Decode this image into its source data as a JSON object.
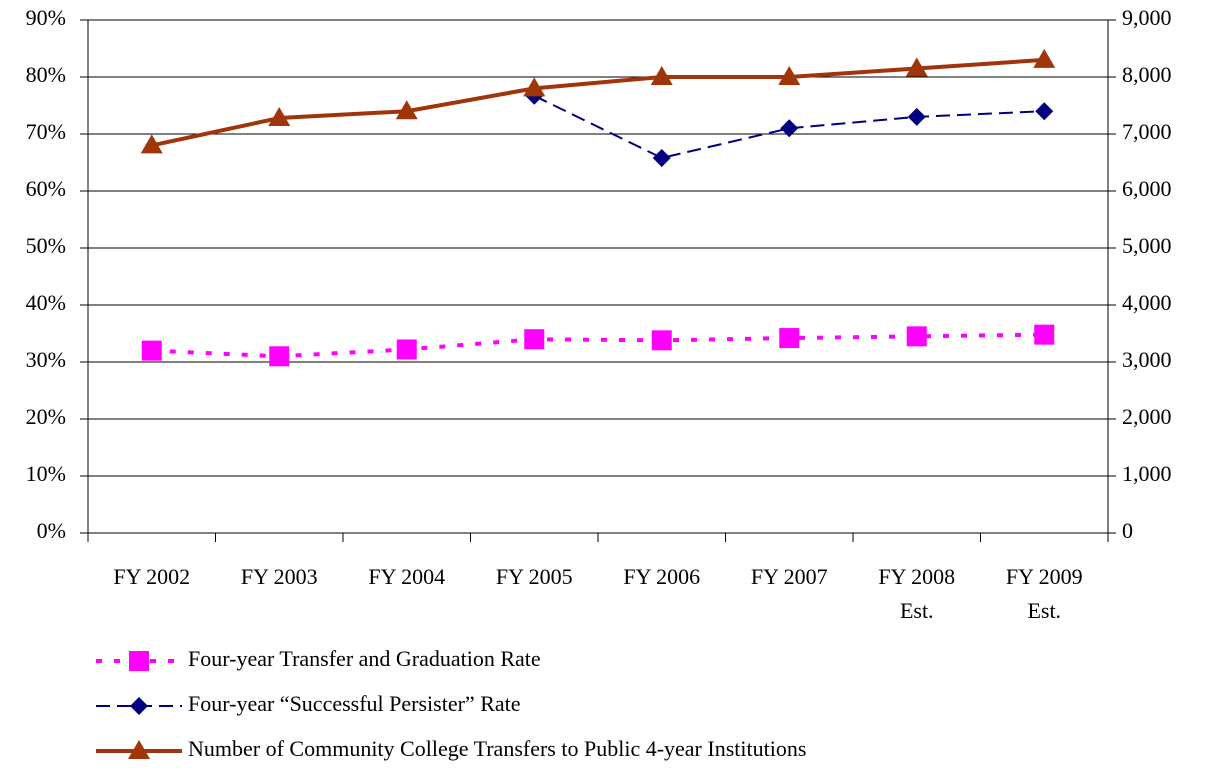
{
  "chart_data": {
    "type": "line",
    "categories": [
      "FY 2002",
      "FY 2003",
      "FY 2004",
      "FY 2005",
      "FY 2006",
      "FY 2007",
      "FY 2008 Est.",
      "FY 2009 Est."
    ],
    "series": [
      {
        "name": "Four-year Transfer and Graduation Rate",
        "color": "#ff00ff",
        "dash": "dotted",
        "marker": "square",
        "values": [
          32,
          31,
          32.2,
          34,
          33.8,
          34.2,
          34.5,
          34.8
        ]
      },
      {
        "name": "Four-year “Successful Persister” Rate",
        "color": "#000080",
        "dash": "dashed",
        "marker": "diamond",
        "values": [
          null,
          null,
          null,
          76.7,
          65.8,
          71,
          73,
          74
        ]
      },
      {
        "name": "Number of Community College Transfers to Public 4-year Institutions",
        "color": "#a0350a",
        "dash": "solid",
        "marker": "triangle",
        "axis": "y2",
        "values": [
          6800,
          7280,
          7400,
          7800,
          8000,
          8000,
          8150,
          8300
        ]
      }
    ],
    "ylim": [
      0,
      90
    ],
    "yticks": [
      {
        "value": 0,
        "label": "0%"
      },
      {
        "value": 10,
        "label": "10%"
      },
      {
        "value": 20,
        "label": "20%"
      },
      {
        "value": 30,
        "label": "30%"
      },
      {
        "value": 40,
        "label": "40%"
      },
      {
        "value": 50,
        "label": "50%"
      },
      {
        "value": 60,
        "label": "60%"
      },
      {
        "value": 70,
        "label": "70%"
      },
      {
        "value": 80,
        "label": "80%"
      },
      {
        "value": 90,
        "label": "90%"
      }
    ],
    "y2lim": [
      0,
      9000
    ],
    "y2ticks": [
      0,
      {
        "value": 1000,
        "label": "1,000"
      },
      {
        "value": 2000,
        "label": "2,000"
      },
      {
        "value": 3000,
        "label": "3,000"
      },
      {
        "value": 4000,
        "label": "4,000"
      },
      {
        "value": 5000,
        "label": "5,000"
      },
      {
        "value": 6000,
        "label": "6,000"
      },
      {
        "value": 7000,
        "label": "7,000"
      },
      {
        "value": 8000,
        "label": "8,000"
      },
      {
        "value": 9000,
        "label": "9,000"
      }
    ],
    "grid": true
  }
}
